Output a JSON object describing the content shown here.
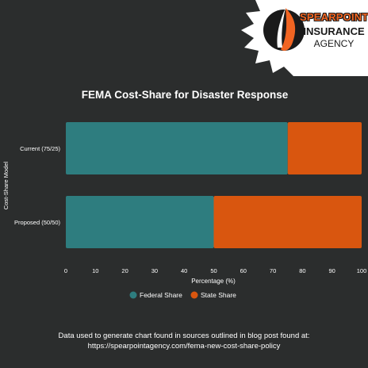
{
  "brand": {
    "name_line1": "SPEARPOINT",
    "name_line2": "INSURANCE",
    "name_line3": "AGENCY",
    "accent_color": "#f26522",
    "dark_color": "#1a1a1a"
  },
  "chart_data": {
    "type": "bar",
    "orientation": "horizontal",
    "stacked": true,
    "title": "FEMA Cost-Share for Disaster Response",
    "xlabel": "Percentage (%)",
    "ylabel": "Cost-Share Model",
    "categories": [
      "Current (75/25)",
      "Proposed (50/50)"
    ],
    "xlim": [
      0,
      100
    ],
    "xticks": [
      0,
      10,
      20,
      30,
      40,
      50,
      60,
      70,
      80,
      90,
      100
    ],
    "grid": false,
    "legend_position": "bottom",
    "series": [
      {
        "name": "Federal Share",
        "values": [
          75,
          50
        ],
        "color": "#2e7d7f"
      },
      {
        "name": "State Share",
        "values": [
          25,
          50
        ],
        "color": "#d9560f"
      }
    ]
  },
  "footer": {
    "line1": "Data used to generate chart found in sources outlined in blog post found at:",
    "line2": "https://spearpointagency.com/fema-new-cost-share-policy"
  }
}
